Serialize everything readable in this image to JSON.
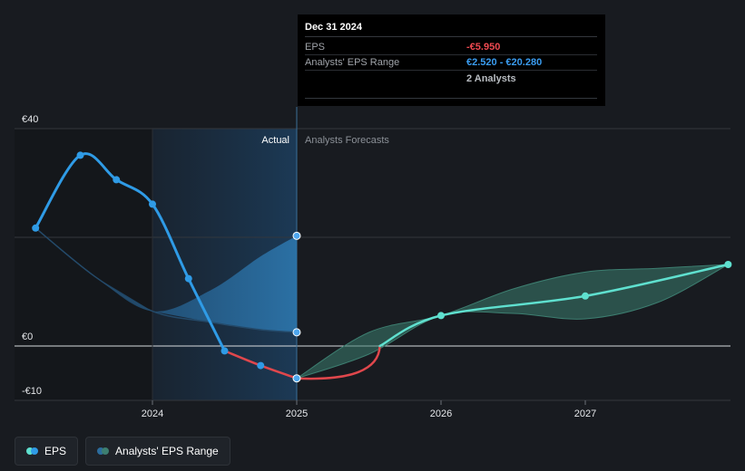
{
  "colors": {
    "background": "#181b20",
    "eps_actual": "#2f9be6",
    "eps_negative": "#e0474c",
    "eps_forecast": "#5fe0cf",
    "range_forecast": "#3d7e70",
    "range_actual": "#2c6c9e",
    "tooltip_negative": "#ef4a51",
    "tooltip_range": "#3a9cf0"
  },
  "tooltip": {
    "date": "Dec 31 2024",
    "eps_label": "EPS",
    "eps_value": "-€5.950",
    "range_label": "Analysts' EPS Range",
    "range_value": "€2.520 - €20.280",
    "analysts": "2 Analysts"
  },
  "regions": {
    "actual_label": "Actual",
    "forecast_label": "Analysts Forecasts"
  },
  "legend": {
    "eps_label": "EPS",
    "range_label": "Analysts' EPS Range"
  },
  "chart_data": {
    "type": "line",
    "y_ticks": [
      {
        "value": 40,
        "label": "€40"
      },
      {
        "value": 0,
        "label": "€0"
      },
      {
        "value": -10,
        "label": "-€10"
      }
    ],
    "x_ticks": [
      {
        "value": 2024.0,
        "label": "2024"
      },
      {
        "value": 2025.0,
        "label": "2025"
      },
      {
        "value": 2026.0,
        "label": "2026"
      },
      {
        "value": 2027.0,
        "label": "2027"
      }
    ],
    "xlim": [
      2023.1,
      2027.99
    ],
    "ylim": [
      -10,
      40
    ],
    "actual_end": 2025.0,
    "highlight_start": 2024.0,
    "series": [
      {
        "name": "EPS",
        "kind": "actual",
        "x": [
          2023.19,
          2023.5,
          2023.75,
          2024.0,
          2024.25,
          2024.5,
          2024.75,
          2025.0
        ],
        "y": [
          21.7,
          35.1,
          30.6,
          26.1,
          12.4,
          -0.9,
          -3.6,
          -5.95
        ]
      },
      {
        "name": "EPS",
        "kind": "forecast",
        "x": [
          2025.0,
          2025.5,
          2026.0,
          2027.0,
          2027.99
        ],
        "y": [
          -5.95,
          -1.0,
          5.6,
          9.2,
          15.0
        ]
      }
    ],
    "range_actual": {
      "x": [
        2023.19,
        2023.6,
        2024.0,
        2024.4,
        2024.75,
        2025.0
      ],
      "low": [
        21.7,
        12.8,
        6.4,
        4.4,
        3.0,
        2.52
      ],
      "high": [
        21.7,
        12.8,
        6.4,
        10.2,
        16.5,
        20.28
      ]
    },
    "range_forecast": {
      "x": [
        2025.0,
        2025.5,
        2026.0,
        2026.5,
        2027.0,
        2027.5,
        2027.99
      ],
      "low": [
        -5.95,
        -1.5,
        5.6,
        6.0,
        5.0,
        8.0,
        15.0
      ],
      "high": [
        -5.95,
        2.5,
        5.6,
        10.5,
        13.6,
        14.3,
        15.0
      ]
    }
  }
}
